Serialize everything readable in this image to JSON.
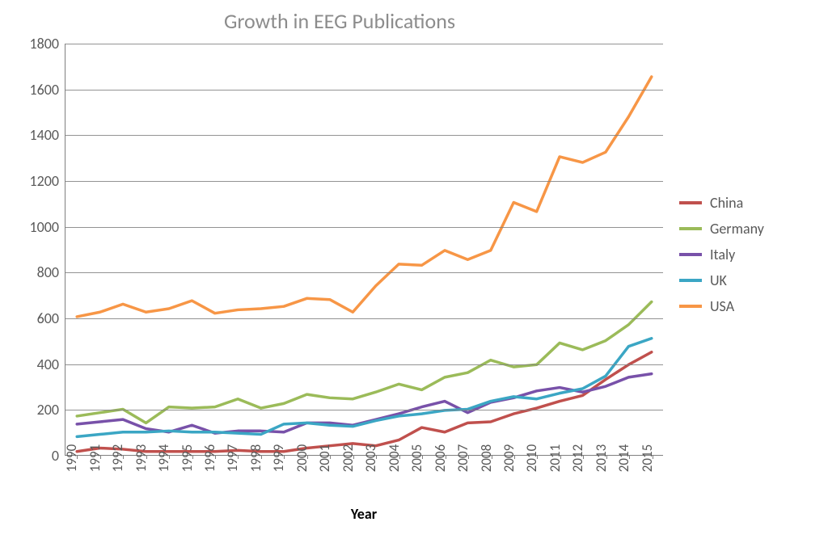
{
  "chart": {
    "type": "line",
    "title": "Growth in EEG Publications",
    "title_color": "#8c8c8c",
    "title_fontsize": 26,
    "x_axis": {
      "label": "Year",
      "label_fontsize": 18,
      "label_fontweight": "bold",
      "categories": [
        1990,
        1991,
        1992,
        1993,
        1994,
        1995,
        1996,
        1997,
        1998,
        1999,
        2000,
        2001,
        2002,
        2003,
        2004,
        2005,
        2006,
        2007,
        2008,
        2009,
        2010,
        2011,
        2012,
        2013,
        2014,
        2015
      ],
      "tick_rotation_deg": -90,
      "tick_fontsize": 17,
      "tick_color": "#595959"
    },
    "y_axis": {
      "lim": [
        0,
        1800
      ],
      "tick_step": 200,
      "ticks": [
        0,
        200,
        400,
        600,
        800,
        1000,
        1200,
        1400,
        1600,
        1800
      ],
      "tick_fontsize": 18,
      "tick_color": "#595959",
      "gridline_color": "#808080"
    },
    "background_color": "#ffffff",
    "line_width": 3.5,
    "series": [
      {
        "name": "China",
        "color": "#c0504d",
        "values": [
          15,
          30,
          25,
          15,
          15,
          15,
          15,
          20,
          15,
          15,
          30,
          40,
          50,
          40,
          65,
          120,
          100,
          140,
          145,
          180,
          205,
          235,
          260,
          330,
          395,
          450
        ]
      },
      {
        "name": "Germany",
        "color": "#9bbb59",
        "values": [
          170,
          185,
          200,
          140,
          210,
          205,
          210,
          245,
          205,
          225,
          265,
          250,
          245,
          275,
          310,
          285,
          340,
          360,
          415,
          385,
          395,
          490,
          460,
          500,
          570,
          670
        ]
      },
      {
        "name": "Italy",
        "color": "#7851a9",
        "values": [
          135,
          145,
          155,
          115,
          100,
          130,
          95,
          105,
          105,
          100,
          140,
          140,
          130,
          155,
          180,
          210,
          235,
          185,
          230,
          250,
          280,
          295,
          275,
          300,
          340,
          355
        ]
      },
      {
        "name": "UK",
        "color": "#3ba6c4",
        "values": [
          80,
          90,
          100,
          100,
          105,
          100,
          100,
          95,
          90,
          135,
          140,
          130,
          125,
          150,
          170,
          180,
          195,
          200,
          235,
          255,
          245,
          270,
          290,
          345,
          475,
          510
        ]
      },
      {
        "name": "USA",
        "color": "#f79646",
        "values": [
          605,
          625,
          660,
          625,
          640,
          675,
          620,
          635,
          640,
          650,
          685,
          680,
          625,
          740,
          835,
          830,
          895,
          855,
          895,
          1105,
          1065,
          1305,
          1280,
          1325,
          1480,
          1655
        ]
      }
    ],
    "legend": {
      "position": "right",
      "fontsize": 18,
      "text_color": "#595959",
      "swatch_width": 28,
      "swatch_height": 4
    }
  }
}
